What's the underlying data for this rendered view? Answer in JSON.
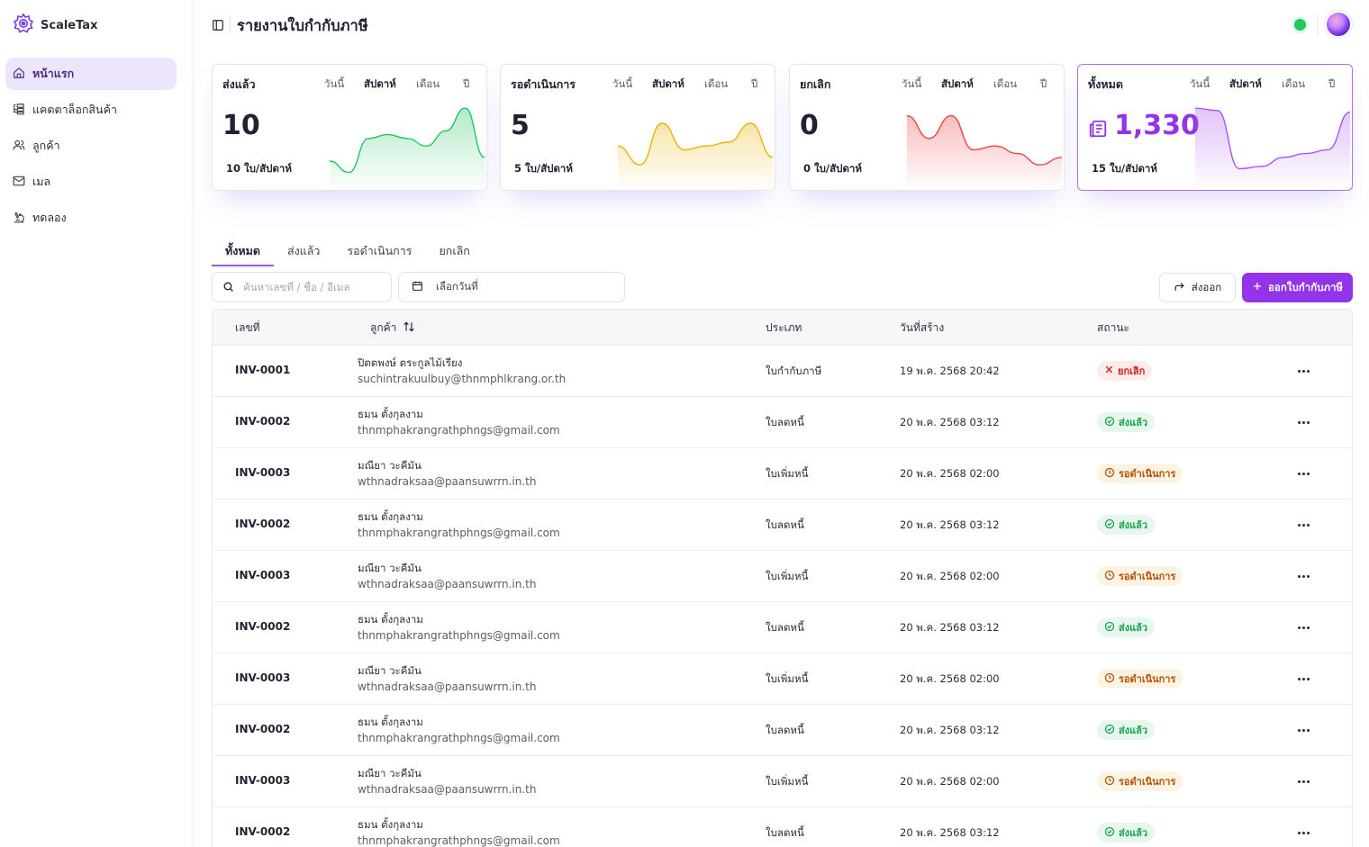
{
  "app": {
    "name": "ScaleTax"
  },
  "sidebar": {
    "items": [
      {
        "label": "หน้าแรก",
        "icon": "home-icon",
        "active": true
      },
      {
        "label": "แคตตาล็อกสินค้า",
        "icon": "catalog-icon",
        "active": false
      },
      {
        "label": "ลูกค้า",
        "icon": "users-icon",
        "active": false
      },
      {
        "label": "เมล",
        "icon": "mail-icon",
        "active": false
      },
      {
        "label": "ทดลอง",
        "icon": "microscope-icon",
        "active": false
      }
    ]
  },
  "header": {
    "title": "รายงานใบกำกับภาษี",
    "status_color": "#22c55e"
  },
  "cards": [
    {
      "title": "ส่งแล้ว",
      "value": "10",
      "sub": "10 ใบ/สัปดาห์",
      "color": "#22c55e",
      "periods": [
        "วันนี้",
        "สัปดาห์",
        "เดือน",
        "ปี"
      ],
      "selected_period": "สัปดาห์",
      "trend": [
        0.25,
        0.1,
        0.55,
        0.6,
        0.55,
        0.45,
        0.65,
        0.95,
        0.3
      ]
    },
    {
      "title": "รอดำเนินการ",
      "value": "5",
      "sub": "5 ใบ/สัปดาห์",
      "color": "#eab308",
      "periods": [
        "วันนี้",
        "สัปดาห์",
        "เดือน",
        "ปี"
      ],
      "selected_period": "สัปดาห์",
      "trend": [
        0.45,
        0.2,
        0.75,
        0.4,
        0.45,
        0.5,
        0.75,
        0.3
      ]
    },
    {
      "title": "ยกเลิก",
      "value": "0",
      "sub": "0 ใบ/สัปดาห์",
      "color": "#ef4444",
      "periods": [
        "วันนี้",
        "สัปดาห์",
        "เดือน",
        "ปี"
      ],
      "selected_period": "สัปดาห์",
      "trend": [
        0.85,
        0.55,
        0.85,
        0.4,
        0.45,
        0.35,
        0.2,
        0.3
      ]
    },
    {
      "title": "ทั้งหมด",
      "value": "1,330",
      "sub": "15 ใบ/สัปดาห์",
      "color": "#a855f7",
      "periods": [
        "วันนี้",
        "สัปดาห์",
        "เดือน",
        "ปี"
      ],
      "selected_period": "สัปดาห์",
      "trend": [
        0.95,
        0.92,
        0.15,
        0.18,
        0.3,
        0.35,
        0.4,
        0.9
      ]
    }
  ],
  "tabs": [
    "ทั้งหมด",
    "ส่งแล้ว",
    "รอดำเนินการ",
    "ยกเลิก"
  ],
  "toolbar": {
    "search_placeholder": "ค้นหาเลขที่ / ชื่อ / อีเมล",
    "date_label": "เลือกวันที่",
    "export_label": "ส่งออก",
    "issue_label": "ออกใบกำกับภาษี"
  },
  "table": {
    "columns": [
      "เลขที่",
      "ลูกค้า",
      "ประเภท",
      "วันที่สร้าง",
      "สถานะ"
    ],
    "rows": [
      {
        "id": "INV-0001",
        "name": "ปิตตพงษ์ ตระกูลไม้เรียง",
        "email": "suchintrakuulbuy@thnmphlkrang.or.th",
        "type": "ใบกำกับภาษี",
        "date": "19 พ.ค. 2568 20:42",
        "status": "ยกเลิก",
        "kind": "cancel"
      },
      {
        "id": "INV-0002",
        "name": "ธมน ตั้งกุลงาม",
        "email": "thnmphakrangrathphngs@gmail.com",
        "type": "ใบลดหนี้",
        "date": "20 พ.ค. 2568 03:12",
        "status": "ส่งแล้ว",
        "kind": "sent"
      },
      {
        "id": "INV-0003",
        "name": "มณียา วะคีมัน",
        "email": "wthnadraksaa@paansuwrrn.in.th",
        "type": "ใบเพิ่มหนี้",
        "date": "20 พ.ค. 2568 02:00",
        "status": "รอดำเนินการ",
        "kind": "pending"
      },
      {
        "id": "INV-0002",
        "name": "ธมน ตั้งกุลงาม",
        "email": "thnmphakrangrathphngs@gmail.com",
        "type": "ใบลดหนี้",
        "date": "20 พ.ค. 2568 03:12",
        "status": "ส่งแล้ว",
        "kind": "sent"
      },
      {
        "id": "INV-0003",
        "name": "มณียา วะคีมัน",
        "email": "wthnadraksaa@paansuwrrn.in.th",
        "type": "ใบเพิ่มหนี้",
        "date": "20 พ.ค. 2568 02:00",
        "status": "รอดำเนินการ",
        "kind": "pending"
      },
      {
        "id": "INV-0002",
        "name": "ธมน ตั้งกุลงาม",
        "email": "thnmphakrangrathphngs@gmail.com",
        "type": "ใบลดหนี้",
        "date": "20 พ.ค. 2568 03:12",
        "status": "ส่งแล้ว",
        "kind": "sent"
      },
      {
        "id": "INV-0003",
        "name": "มณียา วะคีมัน",
        "email": "wthnadraksaa@paansuwrrn.in.th",
        "type": "ใบเพิ่มหนี้",
        "date": "20 พ.ค. 2568 02:00",
        "status": "รอดำเนินการ",
        "kind": "pending"
      },
      {
        "id": "INV-0002",
        "name": "ธมน ตั้งกุลงาม",
        "email": "thnmphakrangrathphngs@gmail.com",
        "type": "ใบลดหนี้",
        "date": "20 พ.ค. 2568 03:12",
        "status": "ส่งแล้ว",
        "kind": "sent"
      },
      {
        "id": "INV-0003",
        "name": "มณียา วะคีมัน",
        "email": "wthnadraksaa@paansuwrrn.in.th",
        "type": "ใบเพิ่มหนี้",
        "date": "20 พ.ค. 2568 02:00",
        "status": "รอดำเนินการ",
        "kind": "pending"
      },
      {
        "id": "INV-0002",
        "name": "ธมน ตั้งกุลงาม",
        "email": "thnmphakrangrathphngs@gmail.com",
        "type": "ใบลดหนี้",
        "date": "20 พ.ค. 2568 03:12",
        "status": "ส่งแล้ว",
        "kind": "sent"
      }
    ]
  }
}
